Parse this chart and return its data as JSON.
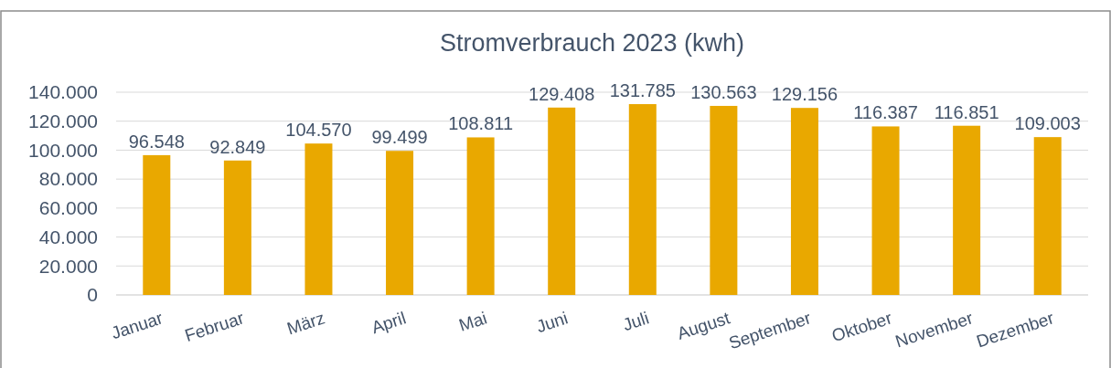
{
  "chart_data": {
    "type": "bar",
    "title": "Stromverbrauch 2023 (kwh)",
    "categories": [
      "Januar",
      "Februar",
      "März",
      "April",
      "Mai",
      "Juni",
      "Juli",
      "August",
      "September",
      "Oktober",
      "November",
      "Dezember"
    ],
    "values": [
      96548,
      92849,
      104570,
      99499,
      108811,
      129408,
      131785,
      130563,
      129156,
      116387,
      116851,
      109003
    ],
    "value_labels": [
      "96.548",
      "92.849",
      "104.570",
      "99.499",
      "108.811",
      "129.408",
      "131.785",
      "130.563",
      "129.156",
      "116.387",
      "116.851",
      "109.003"
    ],
    "color": "#e9a800",
    "ylim": [
      0,
      140000
    ],
    "yticks": [
      0,
      {
        "value": 20000,
        "label": "20.000"
      },
      {
        "value": 40000,
        "label": "40.000"
      },
      {
        "value": 60000,
        "label": "60.000"
      },
      {
        "value": 80000,
        "label": "80.000"
      },
      {
        "value": 100000,
        "label": "100.000"
      },
      {
        "value": 120000,
        "label": "120.000"
      },
      {
        "value": 140000,
        "label": "140.000"
      }
    ],
    "grid": "y"
  }
}
